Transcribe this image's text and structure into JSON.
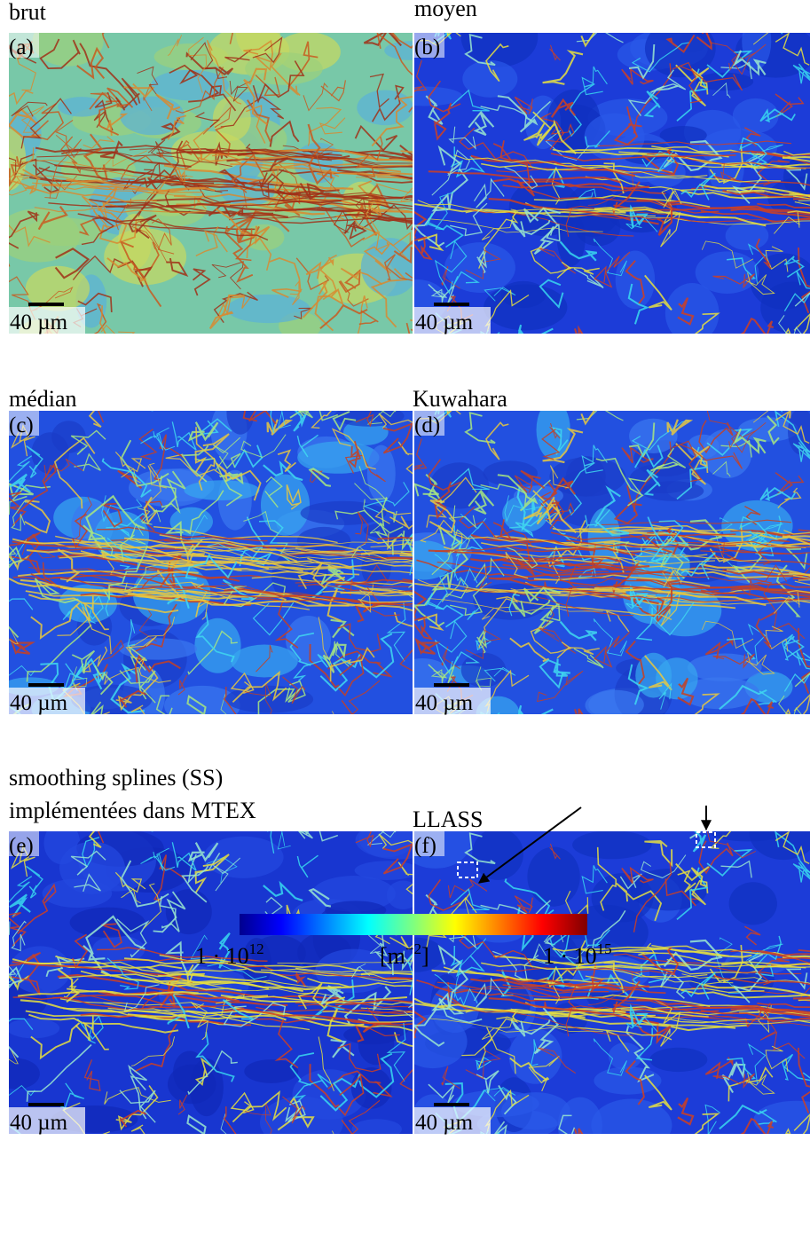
{
  "panels": [
    {
      "title": [
        "brut"
      ],
      "label": "(a)",
      "scale_bar": "40 µm"
    },
    {
      "title": [
        "moyen"
      ],
      "label": "(b)",
      "scale_bar": "40 µm"
    },
    {
      "title": [
        "médian"
      ],
      "label": "(c)",
      "scale_bar": "40 µm"
    },
    {
      "title": [
        "Kuwahara"
      ],
      "label": "(d)",
      "scale_bar": "40 µm"
    },
    {
      "title": [
        "smoothing splines (SS)",
        "implémentées dans MTEX"
      ],
      "label": "(e)",
      "scale_bar": "40 µm"
    },
    {
      "title": [
        "LLASS"
      ],
      "label": "(f)",
      "scale_bar": "40 µm"
    }
  ],
  "colorbar": {
    "min": {
      "base": "1 · 10",
      "exponent": "12"
    },
    "unit": {
      "base": "[m",
      "exponent": "−2",
      "close": "]"
    },
    "max": {
      "base": "1 · 10",
      "exponent": "15"
    }
  }
}
